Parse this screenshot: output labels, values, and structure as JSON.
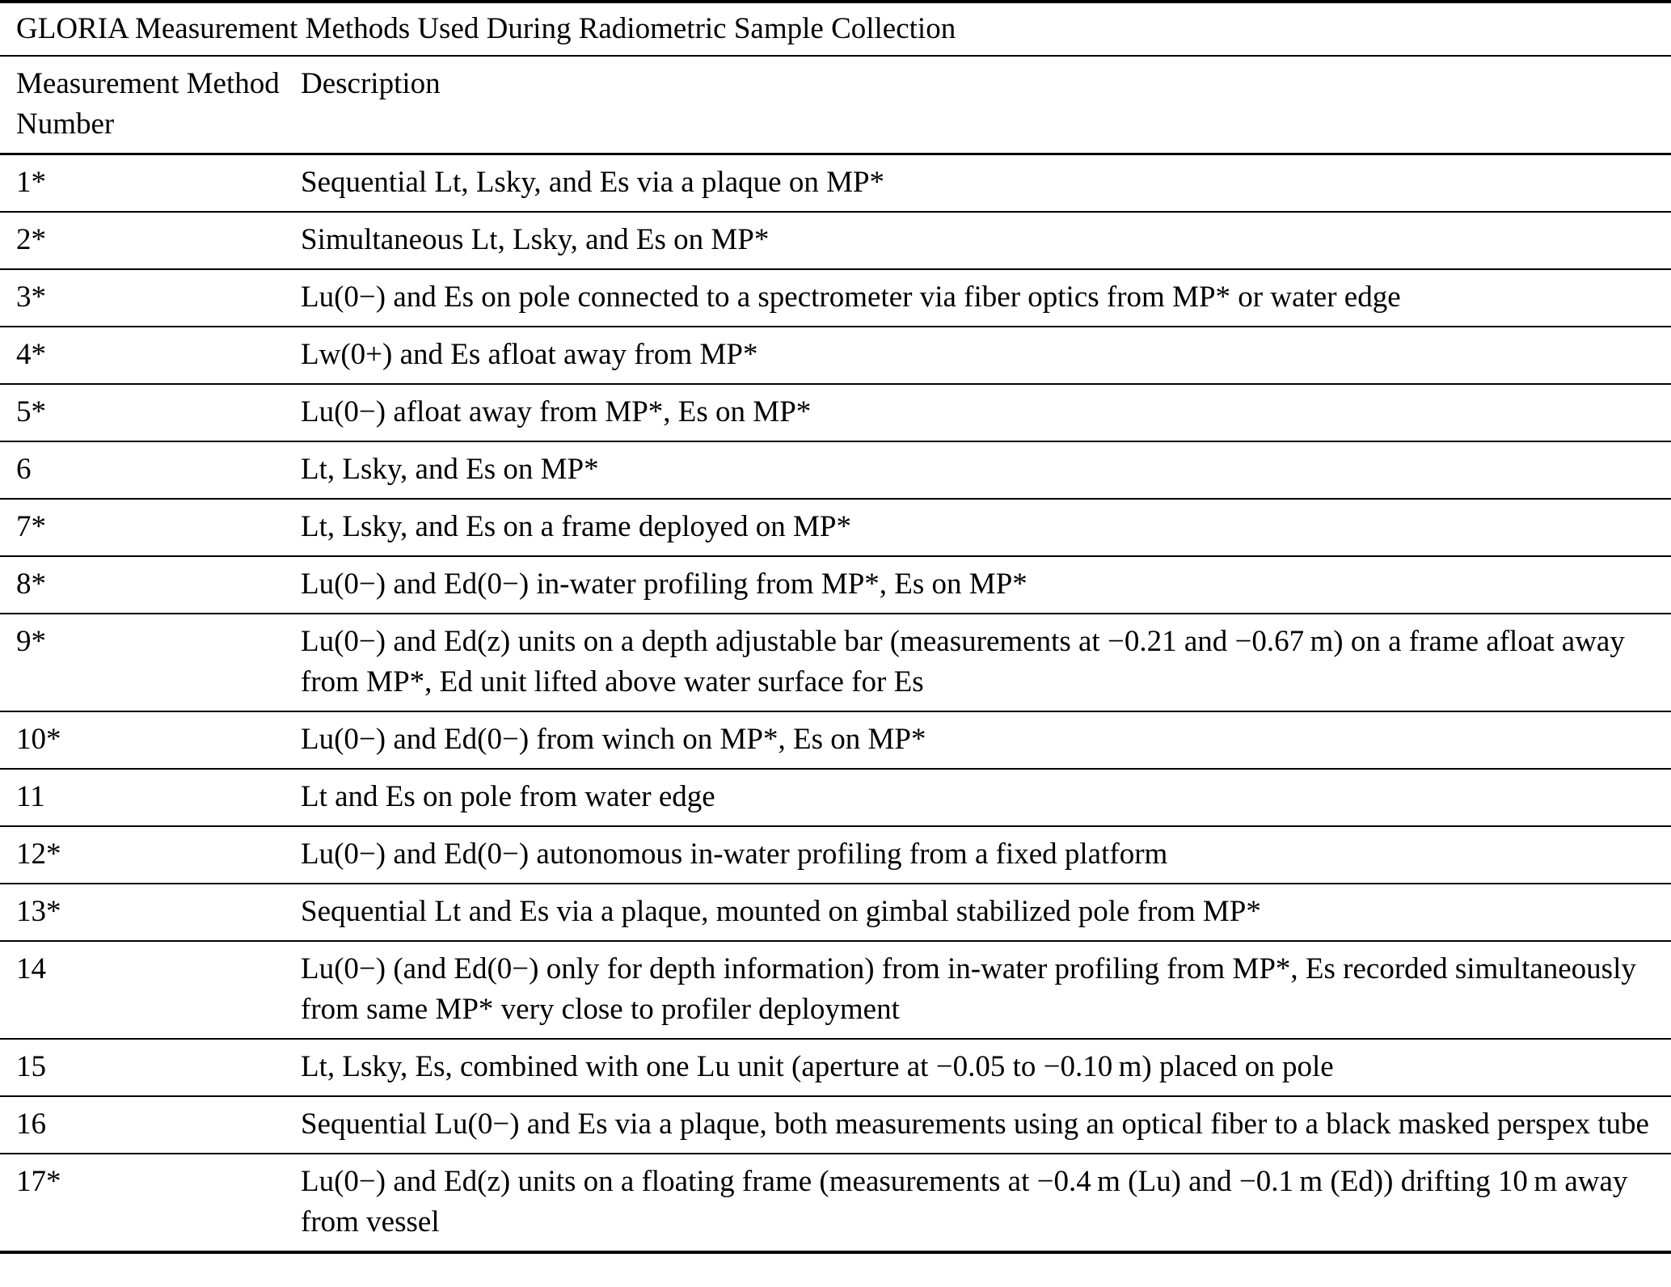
{
  "colors": {
    "background": "#ffffff",
    "text": "#000000",
    "rule": "#000000"
  },
  "table": {
    "title": "GLORIA Measurement Methods Used During Radiometric Sample Collection",
    "columns": [
      "Measurement Method Number",
      "Description"
    ],
    "rows": [
      {
        "number": "1*",
        "description": "Sequential Lt, Lsky, and Es via a plaque on MP*"
      },
      {
        "number": "2*",
        "description": "Simultaneous Lt, Lsky, and Es on MP*"
      },
      {
        "number": "3*",
        "description": "Lu(0−) and Es on pole connected to a spectrometer via fiber optics from MP* or water edge"
      },
      {
        "number": "4*",
        "description": "Lw(0+) and Es afloat away from MP*"
      },
      {
        "number": "5*",
        "description": "Lu(0−) afloat away from MP*, Es on MP*"
      },
      {
        "number": "6",
        "description": "Lt, Lsky, and Es on MP*"
      },
      {
        "number": "7*",
        "description": "Lt, Lsky, and Es on a frame deployed on MP*"
      },
      {
        "number": "8*",
        "description": "Lu(0−) and Ed(0−) in-water profiling from MP*, Es on MP*"
      },
      {
        "number": "9*",
        "description": "Lu(0−) and Ed(z) units on a depth adjustable bar (measurements at −0.21 and −0.67 m) on a frame afloat away from MP*, Ed unit lifted above water surface for Es"
      },
      {
        "number": "10*",
        "description": "Lu(0−) and Ed(0−) from winch on MP*, Es on MP*"
      },
      {
        "number": "11",
        "description": "Lt and Es on pole from water edge"
      },
      {
        "number": "12*",
        "description": "Lu(0−) and Ed(0−) autonomous in-water profiling from a fixed platform"
      },
      {
        "number": "13*",
        "description": "Sequential Lt and Es via a plaque, mounted on gimbal stabilized pole from MP*"
      },
      {
        "number": "14",
        "description": "Lu(0−) (and Ed(0−) only for depth information) from in-water profiling from MP*, Es recorded simultaneously from same MP* very close to profiler deployment"
      },
      {
        "number": "15",
        "description": "Lt, Lsky, Es, combined with one Lu unit (aperture at −0.05 to −0.10 m) placed on pole"
      },
      {
        "number": "16",
        "description": "Sequential Lu(0−) and Es via a plaque, both measurements using an optical fiber to a black masked perspex tube"
      },
      {
        "number": "17*",
        "description": "Lu(0−) and Ed(z) units on a floating frame (measurements at −0.4 m (Lu) and −0.1 m (Ed)) drifting 10 m away from vessel"
      }
    ]
  }
}
